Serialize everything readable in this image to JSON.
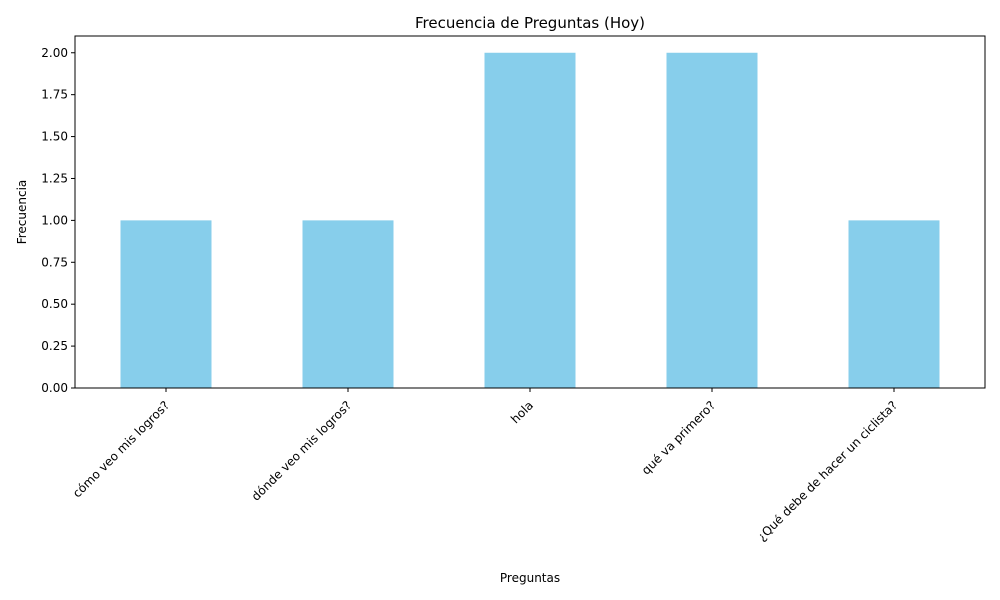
{
  "chart_data": {
    "type": "bar",
    "title": "Frecuencia de Preguntas (Hoy)",
    "xlabel": "Preguntas",
    "ylabel": "Frecuencia",
    "categories": [
      "cómo veo mis logros?",
      "dónde veo mis logros?",
      "hola",
      "qué va primero?",
      "¿Qué debe de hacer un ciclista?"
    ],
    "values": [
      1,
      1,
      2,
      2,
      1
    ],
    "ylim": [
      0,
      2.1
    ],
    "yticks": [
      "0.00",
      "0.25",
      "0.50",
      "0.75",
      "1.00",
      "1.25",
      "1.50",
      "1.75",
      "2.00"
    ],
    "bar_color": "#87ceeb",
    "grid": false,
    "legend": "none"
  }
}
